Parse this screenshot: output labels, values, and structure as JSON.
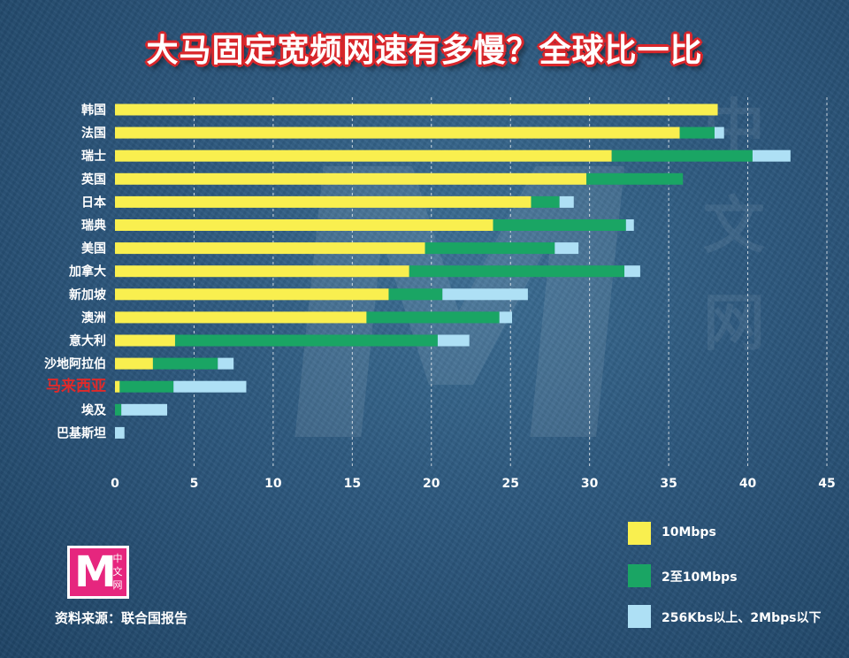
{
  "title": "大马固定宽频网速有多慢？全球比一比",
  "watermark": {
    "letter": "M",
    "text": "中文网"
  },
  "chart_data": {
    "type": "bar",
    "orientation": "horizontal",
    "stacked": true,
    "categories": [
      "韩国",
      "法国",
      "瑞士",
      "英国",
      "日本",
      "瑞典",
      "美国",
      "加拿大",
      "新加坡",
      "澳洲",
      "意大利",
      "沙地阿拉伯",
      "马来西亚",
      "埃及",
      "巴基斯坦"
    ],
    "highlight_category": "马来西亚",
    "highlight_color": "#e02a2a",
    "series": [
      {
        "name": "10Mbps",
        "color": "#f9ef4f",
        "values": [
          38.1,
          35.7,
          31.4,
          29.8,
          26.3,
          23.9,
          19.6,
          18.6,
          17.3,
          15.9,
          3.8,
          2.4,
          0.3,
          0.0,
          0.0
        ]
      },
      {
        "name": "2至10Mbps",
        "color": "#1aa564",
        "values": [
          0.0,
          2.2,
          8.9,
          6.1,
          1.8,
          8.4,
          8.2,
          13.6,
          3.4,
          8.4,
          16.6,
          4.1,
          3.4,
          0.4,
          0.0
        ]
      },
      {
        "name": "256Kbs以上、2Mbps以下",
        "color": "#aee0f5",
        "values": [
          0.0,
          0.6,
          2.4,
          0.0,
          0.9,
          0.5,
          1.5,
          1.0,
          5.4,
          0.8,
          2.0,
          1.0,
          4.6,
          2.9,
          0.6
        ]
      }
    ],
    "x_ticks": [
      0,
      5,
      10,
      15,
      20,
      25,
      30,
      35,
      40,
      45
    ],
    "xlim": [
      0,
      45
    ],
    "grid": "vertical-dashed",
    "xlabel": "",
    "ylabel": "",
    "legend_position": "bottom-right"
  },
  "logo": {
    "letter": "M",
    "text": "中文网"
  },
  "source": "资料来源：联合国报告"
}
